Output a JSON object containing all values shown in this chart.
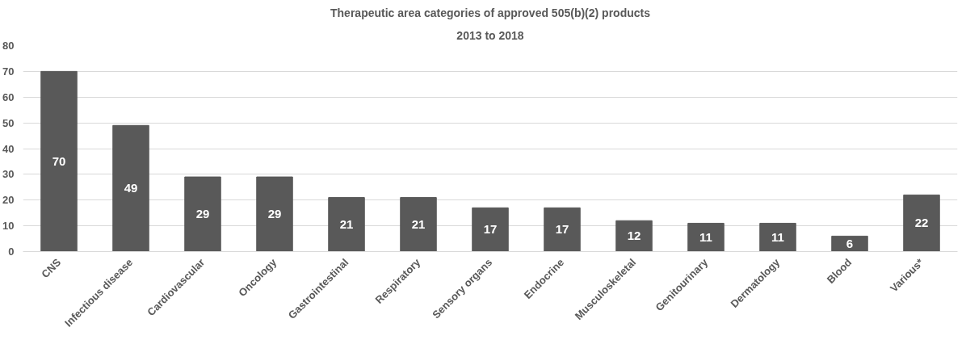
{
  "chart_data": {
    "type": "bar",
    "title": "Therapeutic area categories of approved 505(b)(2) products",
    "subtitle": "2013 to 2018",
    "categories": [
      "CNS",
      "Infectious disease",
      "Cardiovascular",
      "Oncology",
      "Gastrointestinal",
      "Respiratory",
      "Sensory organs",
      "Endocrine",
      "Musculoskeletal",
      "Genitourinary",
      "Dermatology",
      "Blood",
      "Various*"
    ],
    "values": [
      70,
      49,
      29,
      29,
      21,
      21,
      17,
      17,
      12,
      11,
      11,
      6,
      22
    ],
    "color": "#595959",
    "ylim": [
      0,
      80
    ],
    "yticks": [
      0,
      10,
      20,
      30,
      40,
      50,
      60,
      70,
      80
    ],
    "grid": "y",
    "data_labels": true
  }
}
